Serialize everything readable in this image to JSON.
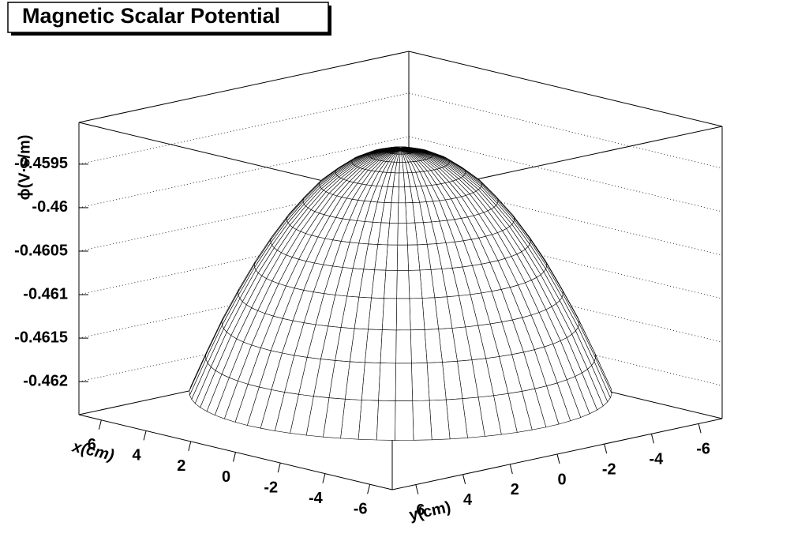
{
  "chart_data": {
    "type": "surface3d",
    "title": "Magnetic Scalar Potential",
    "xlabel": "x(cm)",
    "ylabel": "y(cm)",
    "zlabel": "ϕ(V·s/m)",
    "xlim": [
      -7,
      7
    ],
    "ylim": [
      -7,
      7
    ],
    "zlim": [
      -0.46238,
      -0.45902
    ],
    "xticks": [
      6,
      4,
      2,
      0,
      -2,
      -4,
      -6
    ],
    "yticks": [
      6,
      4,
      2,
      0,
      -2,
      -4,
      -6
    ],
    "zticks": [
      -0.4595,
      -0.46,
      -0.4605,
      -0.461,
      -0.4615,
      -0.462
    ],
    "r": [
      0,
      0.5,
      1,
      1.5,
      2,
      2.5,
      3,
      3.5,
      4,
      4.5,
      5,
      5.5,
      6,
      6.5
    ],
    "z": [
      -0.4593,
      -0.45932,
      -0.45937,
      -0.45945,
      -0.45957,
      -0.45971,
      -0.4599,
      -0.46011,
      -0.46036,
      -0.46064,
      -0.46096,
      -0.4613,
      -0.46169,
      -0.4621
    ],
    "grid": true,
    "color": "#000000",
    "fill": "#ffffff"
  }
}
